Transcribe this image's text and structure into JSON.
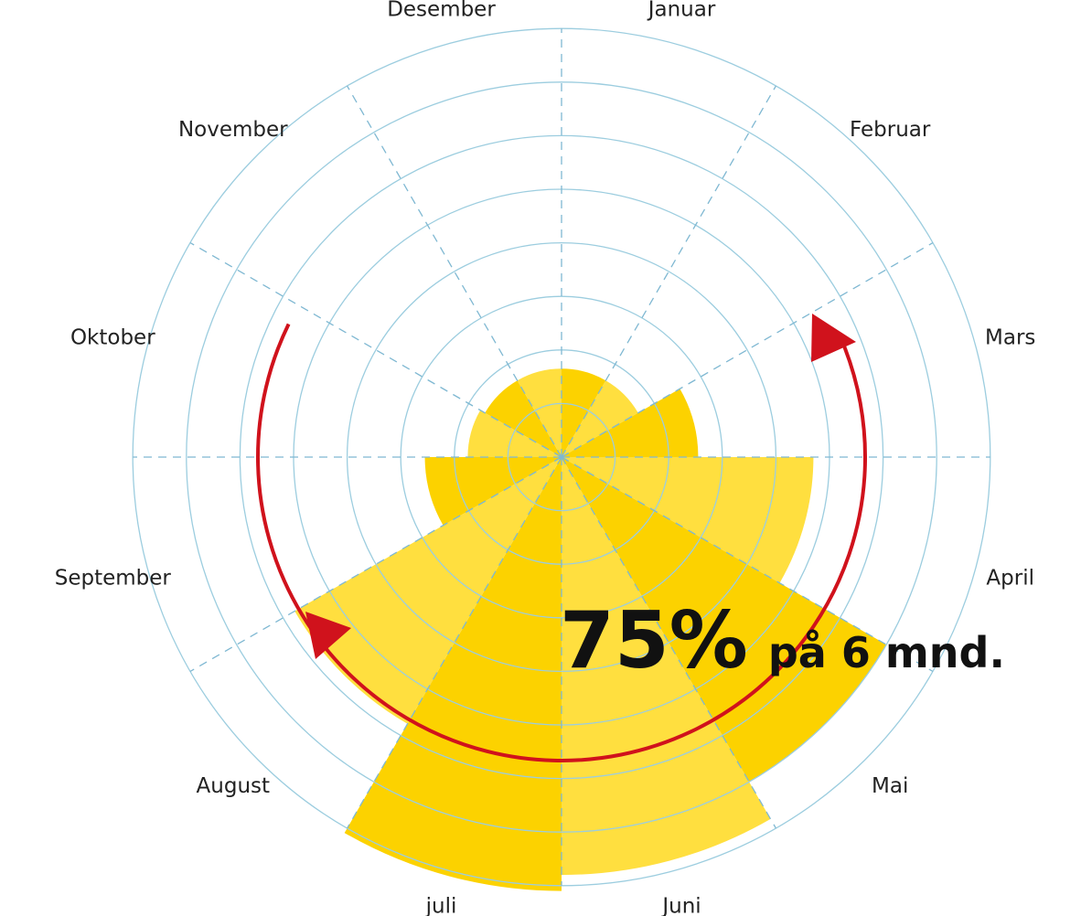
{
  "chart_data": {
    "type": "polar-area",
    "categories": [
      "Januar",
      "Februar",
      "Mars",
      "April",
      "Mai",
      "Juni",
      "juli",
      "August",
      "September",
      "Oktober",
      "November",
      "Desember"
    ],
    "values": [
      1.65,
      1.65,
      2.55,
      4.7,
      7.0,
      7.8,
      8.1,
      5.75,
      2.55,
      1.75,
      1.65,
      1.65
    ],
    "rlim": [
      0,
      8
    ],
    "ring_step": 1,
    "start": "top",
    "direction": "clockwise",
    "grid": true,
    "colors": {
      "sector_a": "#FCD200",
      "sector_b": "#FFDF3F",
      "grid_ring": "#9CCDDF",
      "grid_spoke": "#7FB8D2",
      "arrow": "#D0121C"
    },
    "annotations": {
      "highlight_value": "75%",
      "highlight_text": "på 6 mnd.",
      "arrow_span": [
        "April",
        "September"
      ]
    }
  }
}
